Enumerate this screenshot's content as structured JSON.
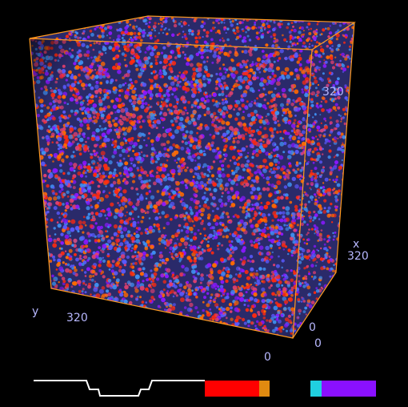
{
  "viewer": {
    "frame_color": "#ff9a1e",
    "label_color": "#b8b8ff",
    "axes": {
      "x_label": "x",
      "x_max": "320",
      "y_label": "y",
      "y_max": "320",
      "z_max": "320",
      "origin_x": "0",
      "origin_y": "0",
      "origin_z": "0"
    },
    "volume_palette": [
      "#ff2a10",
      "#8a18ff",
      "#3f8ff0",
      "#ff6a00",
      "#5a5aff",
      "#e04070"
    ]
  },
  "transfer_function": {
    "curve_color": "#ffffff",
    "swatches": [
      {
        "name": "red",
        "color": "#ff0000"
      },
      {
        "name": "orange",
        "color": "#e08a10"
      },
      {
        "name": "cyan",
        "color": "#20d0e0"
      },
      {
        "name": "violet",
        "color": "#8a10ff"
      }
    ]
  }
}
